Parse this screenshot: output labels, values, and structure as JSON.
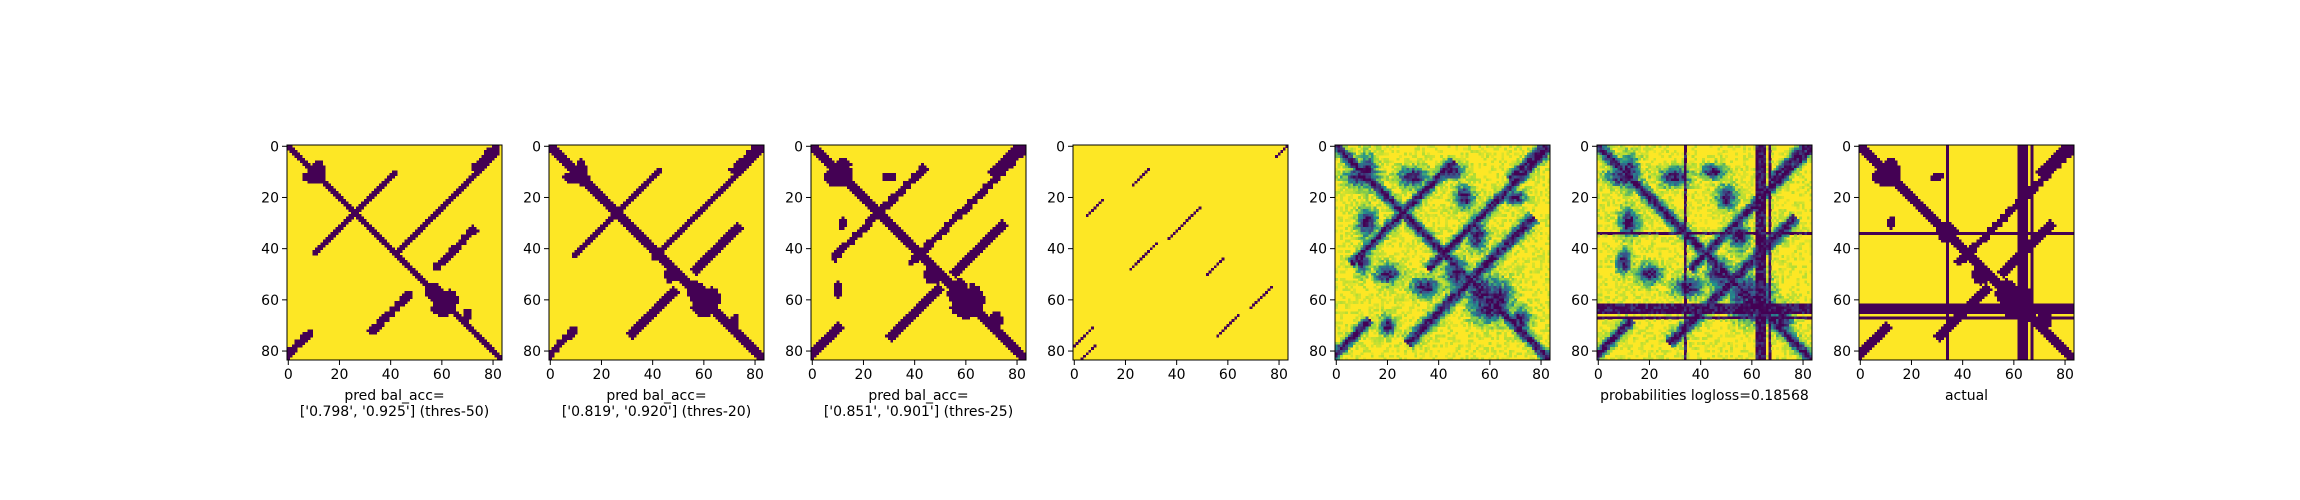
{
  "colors": {
    "background": "#ffffff",
    "high": "#fde725",
    "low": "#440154",
    "mid_light": "#9fda3a",
    "mid": "#21918c",
    "mid_dark": "#3b528b",
    "axis": "#000000"
  },
  "colormap": "viridis",
  "chart_data": [
    {
      "type": "heatmap",
      "size": 84,
      "xticks": [
        0,
        20,
        40,
        60,
        80
      ],
      "yticks": [
        0,
        20,
        40,
        60,
        80
      ],
      "xlabel_lines": [
        "pred bal_acc=",
        "['0.798', '0.925'] (thres-50)"
      ],
      "diagonal": true,
      "diag_width": 1.6,
      "blobs": [
        [
          10,
          12,
          6,
          3
        ],
        [
          12,
          10,
          3,
          6
        ],
        [
          60,
          63,
          5,
          4
        ],
        [
          63,
          60,
          4,
          5
        ],
        [
          57,
          57,
          4,
          4
        ],
        [
          66,
          70,
          3,
          2
        ]
      ],
      "bands": [
        [
          3,
          78,
          6,
          1.2
        ],
        [
          78,
          3,
          6,
          1.2
        ],
        [
          22,
          62,
          20,
          1.0
        ],
        [
          40,
          65,
          8,
          1.2
        ],
        [
          65,
          40,
          8,
          1.2
        ],
        [
          34,
          18,
          8,
          1.0
        ],
        [
          18,
          34,
          8,
          1.0
        ]
      ],
      "lines": [],
      "continuous": false,
      "seed": 11,
      "noise": 0.02
    },
    {
      "type": "heatmap",
      "size": 84,
      "xticks": [
        0,
        20,
        40,
        60,
        80
      ],
      "yticks": [
        0,
        20,
        40,
        60,
        80
      ],
      "xlabel_lines": [
        "pred bal_acc=",
        "['0.819', '0.920'] (thres-20)"
      ],
      "diagonal": true,
      "diag_width": 1.8,
      "blobs": [
        [
          10,
          12,
          6,
          3
        ],
        [
          12,
          10,
          3,
          6
        ],
        [
          60,
          63,
          6,
          4
        ],
        [
          63,
          60,
          4,
          6
        ],
        [
          57,
          57,
          5,
          4
        ],
        [
          50,
          47,
          4,
          3
        ],
        [
          68,
          72,
          3,
          2
        ]
      ],
      "bands": [
        [
          3,
          78,
          7,
          1.2
        ],
        [
          78,
          3,
          7,
          1.2
        ],
        [
          22,
          62,
          22,
          1.0
        ],
        [
          40,
          65,
          9,
          1.3
        ],
        [
          65,
          40,
          9,
          1.3
        ],
        [
          34,
          18,
          9,
          1.0
        ],
        [
          18,
          34,
          9,
          1.0
        ]
      ],
      "lines": [],
      "continuous": false,
      "seed": 23,
      "noise": 0.03
    },
    {
      "type": "heatmap",
      "size": 84,
      "xticks": [
        0,
        20,
        40,
        60,
        80
      ],
      "yticks": [
        0,
        20,
        40,
        60,
        80
      ],
      "xlabel_lines": [
        "pred bal_acc=",
        "['0.851', '0.901'] (thres-25)"
      ],
      "diagonal": true,
      "diag_width": 2.0,
      "blobs": [
        [
          10,
          12,
          7,
          4
        ],
        [
          12,
          10,
          4,
          7
        ],
        [
          60,
          63,
          7,
          5
        ],
        [
          63,
          60,
          5,
          7
        ],
        [
          57,
          57,
          6,
          5
        ],
        [
          50,
          47,
          5,
          4
        ],
        [
          30,
          12,
          3,
          2
        ],
        [
          12,
          30,
          2,
          3
        ],
        [
          68,
          72,
          4,
          3
        ],
        [
          56,
          10,
          4,
          2
        ]
      ],
      "bands": [
        [
          3,
          78,
          8,
          1.3
        ],
        [
          78,
          3,
          8,
          1.3
        ],
        [
          22,
          62,
          24,
          1.2
        ],
        [
          40,
          65,
          10,
          1.5
        ],
        [
          65,
          40,
          10,
          1.5
        ],
        [
          34,
          18,
          10,
          1.2
        ],
        [
          18,
          34,
          10,
          1.2
        ]
      ],
      "lines": [],
      "continuous": false,
      "seed": 37,
      "noise": 0.05
    },
    {
      "type": "heatmap",
      "size": 84,
      "xticks": [
        0,
        20,
        40,
        60,
        80
      ],
      "yticks": [
        0,
        20,
        40,
        60,
        80
      ],
      "xlabel_lines": [],
      "diagonal": false,
      "diag_width": 0,
      "blobs": [],
      "bands": [
        [
          76,
          2,
          5,
          0.5
        ],
        [
          24,
          8,
          3,
          0.5
        ],
        [
          12,
          26,
          3,
          0.5
        ],
        [
          30,
          43,
          6,
          0.5
        ],
        [
          43,
          27,
          5,
          0.5
        ],
        [
          47,
          55,
          3,
          0.5
        ],
        [
          59,
          73,
          4,
          0.5
        ],
        [
          70,
          60,
          4,
          0.5
        ],
        [
          83,
          3,
          5,
          0.5
        ],
        [
          0,
          83,
          4,
          0.5
        ]
      ],
      "lines": [],
      "continuous": false,
      "seed": 5,
      "noise": 0
    },
    {
      "type": "heatmap",
      "size": 84,
      "xticks": [
        0,
        20,
        40,
        60,
        80
      ],
      "yticks": [
        0,
        20,
        40,
        60,
        80
      ],
      "xlabel_lines": [],
      "diagonal": true,
      "diag_width": 2.2,
      "blobs": [
        [
          10,
          12,
          7,
          4
        ],
        [
          12,
          10,
          4,
          7
        ],
        [
          60,
          63,
          8,
          6
        ],
        [
          63,
          60,
          6,
          8
        ],
        [
          57,
          57,
          7,
          6
        ],
        [
          50,
          47,
          6,
          5
        ],
        [
          30,
          12,
          6,
          4
        ],
        [
          12,
          30,
          4,
          6
        ],
        [
          35,
          55,
          6,
          4
        ],
        [
          55,
          35,
          4,
          6
        ],
        [
          20,
          50,
          5,
          4
        ],
        [
          50,
          20,
          4,
          5
        ],
        [
          68,
          72,
          5,
          4
        ],
        [
          45,
          10,
          5,
          3
        ],
        [
          10,
          45,
          3,
          5
        ],
        [
          70,
          20,
          4,
          3
        ],
        [
          20,
          70,
          3,
          4
        ]
      ],
      "bands": [
        [
          3,
          78,
          10,
          1.5
        ],
        [
          78,
          3,
          10,
          1.5
        ],
        [
          22,
          62,
          26,
          1.5
        ],
        [
          40,
          65,
          12,
          1.8
        ],
        [
          65,
          40,
          12,
          1.8
        ],
        [
          34,
          18,
          12,
          1.5
        ],
        [
          18,
          34,
          12,
          1.5
        ]
      ],
      "lines": [],
      "continuous": true,
      "seed": 41,
      "noise": 0.2
    },
    {
      "type": "heatmap",
      "size": 84,
      "xticks": [
        0,
        20,
        40,
        60,
        80
      ],
      "yticks": [
        0,
        20,
        40,
        60,
        80
      ],
      "xlabel_lines": [
        "probabilities logloss=0.18568"
      ],
      "diagonal": true,
      "diag_width": 2.4,
      "blobs": [
        [
          10,
          12,
          7,
          4
        ],
        [
          12,
          10,
          4,
          7
        ],
        [
          60,
          63,
          8,
          6
        ],
        [
          63,
          60,
          6,
          8
        ],
        [
          57,
          57,
          7,
          6
        ],
        [
          50,
          47,
          6,
          5
        ],
        [
          30,
          12,
          6,
          4
        ],
        [
          12,
          30,
          4,
          6
        ],
        [
          35,
          55,
          6,
          4
        ],
        [
          55,
          35,
          4,
          6
        ],
        [
          20,
          50,
          5,
          4
        ],
        [
          50,
          20,
          4,
          5
        ],
        [
          68,
          72,
          5,
          4
        ],
        [
          45,
          10,
          5,
          3
        ],
        [
          10,
          45,
          3,
          5
        ]
      ],
      "bands": [
        [
          3,
          78,
          10,
          1.5
        ],
        [
          78,
          3,
          10,
          1.5
        ],
        [
          22,
          62,
          26,
          1.5
        ],
        [
          40,
          65,
          12,
          1.8
        ],
        [
          65,
          40,
          12,
          1.8
        ]
      ],
      "lines": [
        [
          34,
          1
        ],
        [
          63,
          2
        ],
        [
          65,
          1
        ],
        [
          67,
          1
        ]
      ],
      "continuous": true,
      "seed": 59,
      "noise": 0.2
    },
    {
      "type": "heatmap",
      "size": 84,
      "xticks": [
        0,
        20,
        40,
        60,
        80
      ],
      "yticks": [
        0,
        20,
        40,
        60,
        80
      ],
      "xlabel_lines": [
        "actual"
      ],
      "diagonal": true,
      "diag_width": 2.0,
      "blobs": [
        [
          10,
          12,
          7,
          4
        ],
        [
          12,
          10,
          4,
          7
        ],
        [
          60,
          63,
          7,
          5
        ],
        [
          63,
          60,
          5,
          7
        ],
        [
          57,
          57,
          6,
          5
        ],
        [
          50,
          47,
          5,
          4
        ],
        [
          30,
          12,
          3,
          2
        ],
        [
          12,
          30,
          2,
          3
        ],
        [
          68,
          72,
          4,
          3
        ],
        [
          34,
          34,
          5,
          5
        ]
      ],
      "bands": [
        [
          3,
          78,
          8,
          1.3
        ],
        [
          78,
          3,
          8,
          1.3
        ],
        [
          22,
          62,
          24,
          1.2
        ],
        [
          40,
          65,
          10,
          1.5
        ],
        [
          65,
          40,
          10,
          1.5
        ]
      ],
      "lines": [
        [
          34,
          1
        ],
        [
          63,
          2
        ],
        [
          65,
          1
        ],
        [
          67,
          1
        ]
      ],
      "continuous": false,
      "seed": 73,
      "noise": 0.03
    }
  ]
}
